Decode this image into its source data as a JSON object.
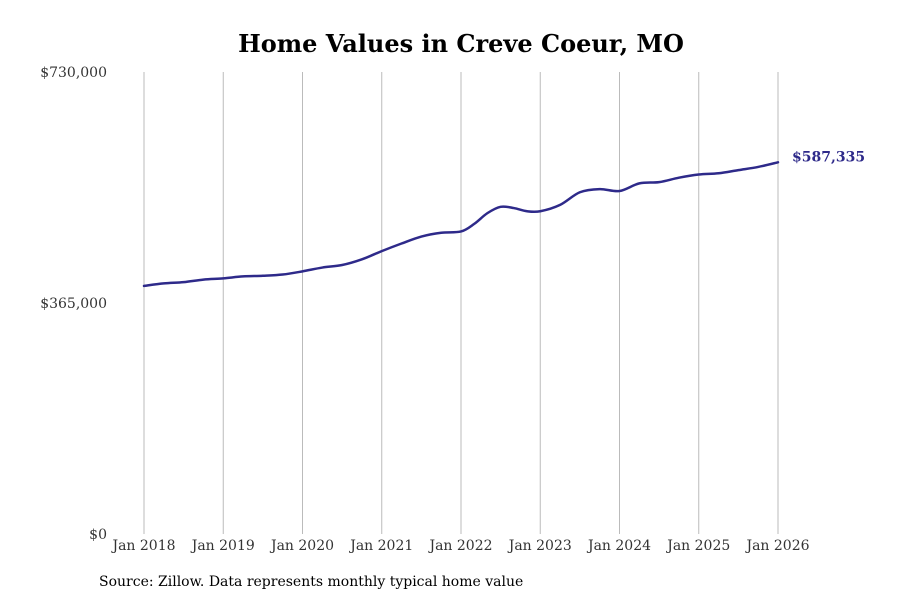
{
  "source_note": "Source: Zillow. Data represents monthly typical home value",
  "chart_data": {
    "type": "line",
    "title": "Home Values in Creve Coeur, MO",
    "xlabel": "",
    "ylabel": "",
    "ylim": [
      0,
      730000
    ],
    "xlim": [
      "2018-01",
      "2026-01"
    ],
    "y_ticks": [
      {
        "value": 0,
        "label": "$0"
      },
      {
        "value": 365000,
        "label": "$365,000"
      },
      {
        "value": 730000,
        "label": "$730,000"
      }
    ],
    "x_ticks": [
      {
        "value": "2018-01",
        "label": "Jan 2018"
      },
      {
        "value": "2019-01",
        "label": "Jan 2019"
      },
      {
        "value": "2020-01",
        "label": "Jan 2020"
      },
      {
        "value": "2021-01",
        "label": "Jan 2021"
      },
      {
        "value": "2022-01",
        "label": "Jan 2022"
      },
      {
        "value": "2023-01",
        "label": "Jan 2023"
      },
      {
        "value": "2024-01",
        "label": "Jan 2024"
      },
      {
        "value": "2025-01",
        "label": "Jan 2025"
      },
      {
        "value": "2026-01",
        "label": "Jan 2026"
      }
    ],
    "grid": {
      "vertical": true,
      "horizontal": false
    },
    "line_color": "#2e2a8a",
    "grid_color": "#bbbbbb",
    "end_label": "$587,335",
    "series": [
      {
        "x": [
          "2018-01",
          "2018-04",
          "2018-07",
          "2018-10",
          "2019-01",
          "2019-04",
          "2019-07",
          "2019-10",
          "2020-01",
          "2020-04",
          "2020-07",
          "2020-10",
          "2021-01",
          "2021-04",
          "2021-07",
          "2021-10",
          "2022-01",
          "2022-03",
          "2022-05",
          "2022-07",
          "2022-09",
          "2022-11",
          "2023-01",
          "2023-04",
          "2023-07",
          "2023-10",
          "2024-01",
          "2024-04",
          "2024-07",
          "2024-10",
          "2025-01",
          "2025-04",
          "2025-07",
          "2025-10",
          "2026-01"
        ],
        "y": [
          392000,
          396000,
          398000,
          402000,
          404000,
          407000,
          408000,
          410000,
          415000,
          421000,
          425000,
          434000,
          447000,
          459000,
          470000,
          476000,
          478000,
          490000,
          507000,
          517000,
          515000,
          510000,
          510000,
          520000,
          540000,
          545000,
          542000,
          554000,
          556000,
          563000,
          568000,
          570000,
          575000,
          580000,
          587335
        ]
      }
    ]
  }
}
